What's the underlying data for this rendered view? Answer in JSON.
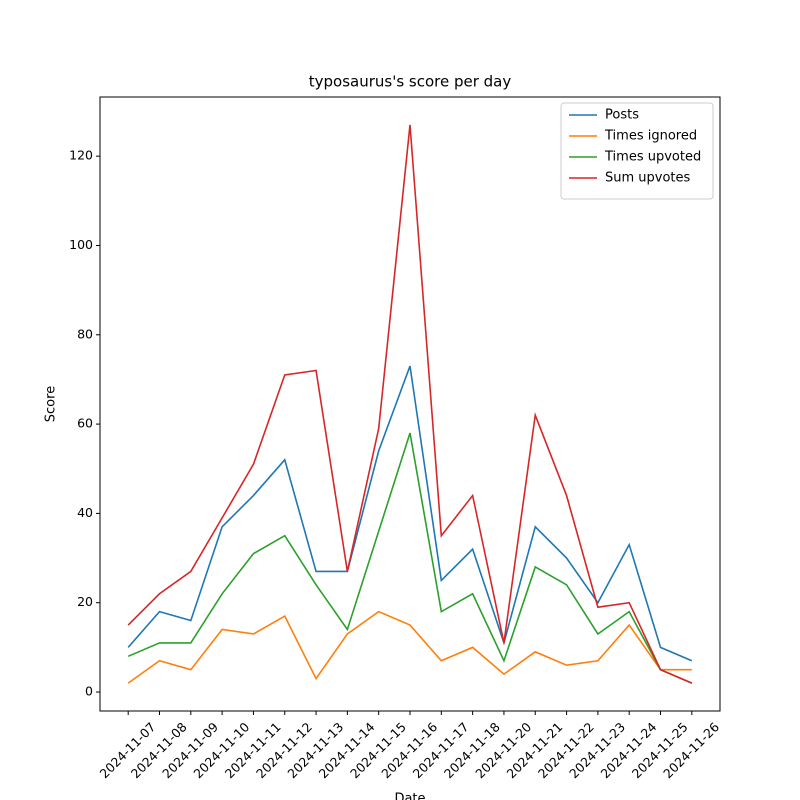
{
  "chart_data": {
    "type": "line",
    "title": "typosaurus's score per day",
    "xlabel": "Date",
    "ylabel": "Score",
    "categories": [
      "2024-11-07",
      "2024-11-08",
      "2024-11-09",
      "2024-11-10",
      "2024-11-11",
      "2024-11-12",
      "2024-11-13",
      "2024-11-14",
      "2024-11-15",
      "2024-11-16",
      "2024-11-17",
      "2024-11-18",
      "2024-11-20",
      "2024-11-21",
      "2024-11-22",
      "2024-11-23",
      "2024-11-24",
      "2024-11-25",
      "2024-11-26"
    ],
    "series": [
      {
        "name": "Posts",
        "color": "#1f77b4",
        "values": [
          10,
          18,
          16,
          37,
          44,
          52,
          27,
          27,
          54,
          73,
          25,
          32,
          11,
          37,
          30,
          20,
          33,
          10,
          7
        ]
      },
      {
        "name": "Times ignored",
        "color": "#ff7f0e",
        "values": [
          2,
          7,
          5,
          14,
          13,
          17,
          3,
          13,
          18,
          15,
          7,
          10,
          4,
          9,
          6,
          7,
          15,
          5,
          5
        ]
      },
      {
        "name": "Times upvoted",
        "color": "#2ca02c",
        "values": [
          8,
          11,
          11,
          22,
          31,
          35,
          24,
          14,
          36,
          58,
          18,
          22,
          7,
          28,
          24,
          13,
          18,
          5,
          2
        ]
      },
      {
        "name": "Sum upvotes",
        "color": "#d62728",
        "values": [
          15,
          22,
          27,
          39,
          51,
          71,
          72,
          27,
          59,
          127,
          35,
          44,
          11,
          62,
          44,
          19,
          20,
          5,
          2
        ]
      }
    ],
    "ylim": [
      -4.25,
      133.25
    ],
    "yticks": [
      0,
      20,
      40,
      60,
      80,
      100,
      120
    ],
    "legend": "upper right"
  }
}
